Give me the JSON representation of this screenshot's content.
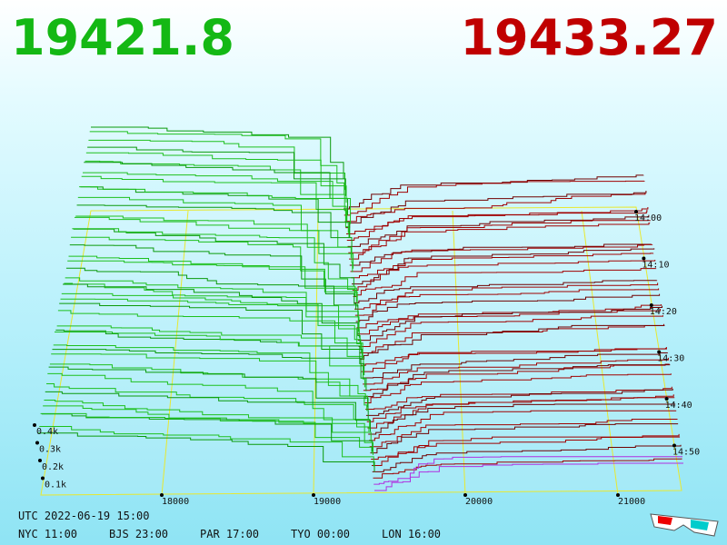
{
  "header": {
    "bid": "19421.8",
    "ask": "19433.27"
  },
  "axes": {
    "price_labels": [
      "18000",
      "19000",
      "20000",
      "21000"
    ],
    "depth_labels": [
      "0.4k",
      "0.3k",
      "0.2k",
      "0.1k"
    ],
    "time_labels": [
      "14:00",
      "14:10",
      "14:20",
      "14:30",
      "14:40",
      "14:50"
    ]
  },
  "footer": {
    "utc": "UTC 2022-06-19 15:00",
    "zones": [
      "NYC 11:00",
      "BJS 23:00",
      "PAR 17:00",
      "TYO 00:00",
      "LON 16:00"
    ]
  }
}
